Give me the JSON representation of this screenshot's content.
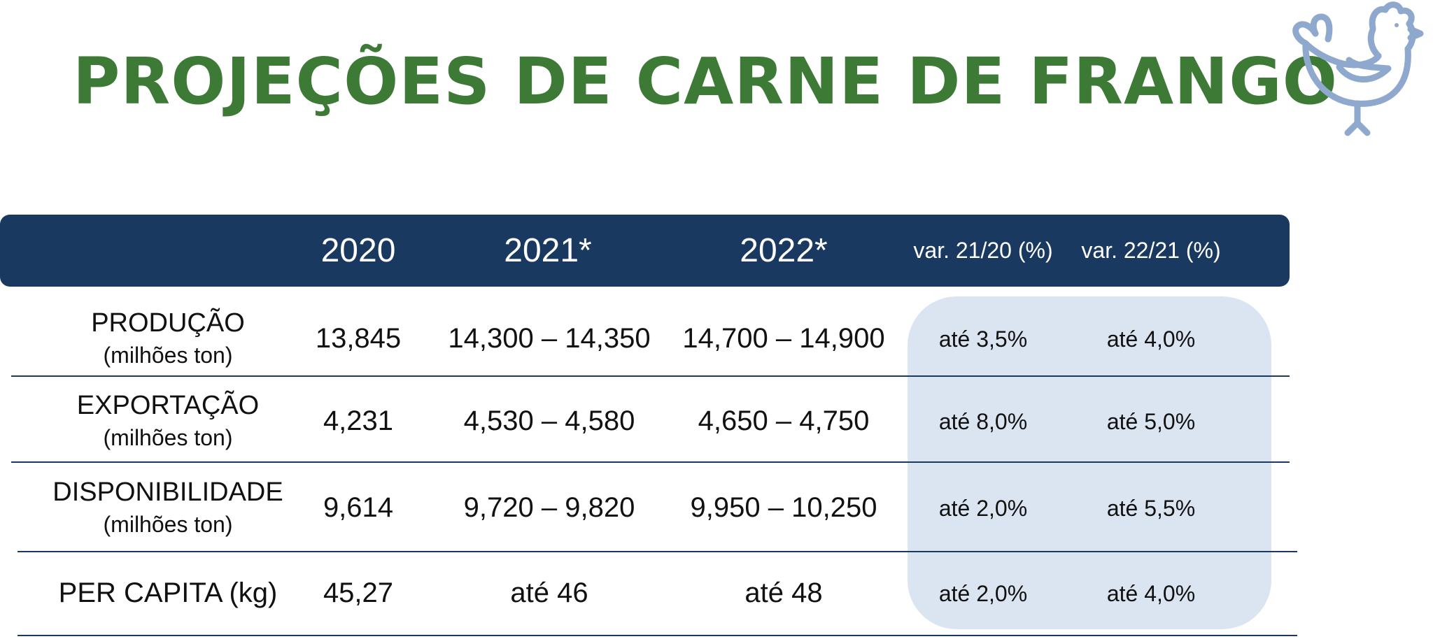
{
  "title": "PROJEÇÕES DE CARNE DE FRANGO",
  "logo_icon": "chicken-icon",
  "colors": {
    "title": "#3d7a36",
    "header_band": "#1a3960",
    "variation_highlight": "#dbe5f2",
    "icon": "#8fa9ce"
  },
  "table": {
    "headers": [
      "2020",
      "2021*",
      "2022*",
      "var. 21/20 (%)",
      "var. 22/21 (%)"
    ],
    "rows": [
      {
        "label": "PRODUÇÃO",
        "sublabel": "(milhões ton)",
        "values": [
          "13,845",
          "14,300 – 14,350",
          "14,700 – 14,900",
          "até 3,5%",
          "até 4,0%"
        ]
      },
      {
        "label": "EXPORTAÇÃO",
        "sublabel": "(milhões ton)",
        "values": [
          "4,231",
          "4,530 – 4,580",
          "4,650 – 4,750",
          "até 8,0%",
          "até 5,0%"
        ]
      },
      {
        "label": "DISPONIBILIDADE",
        "sublabel": "(milhões ton)",
        "values": [
          "9,614",
          "9,720 – 9,820",
          "9,950 – 10,250",
          "até 2,0%",
          "até 5,5%"
        ]
      },
      {
        "label": "PER CAPITA (kg)",
        "sublabel": "",
        "values": [
          "45,27",
          "até 46",
          "até 48",
          "até 2,0%",
          "até 4,0%"
        ]
      }
    ]
  }
}
